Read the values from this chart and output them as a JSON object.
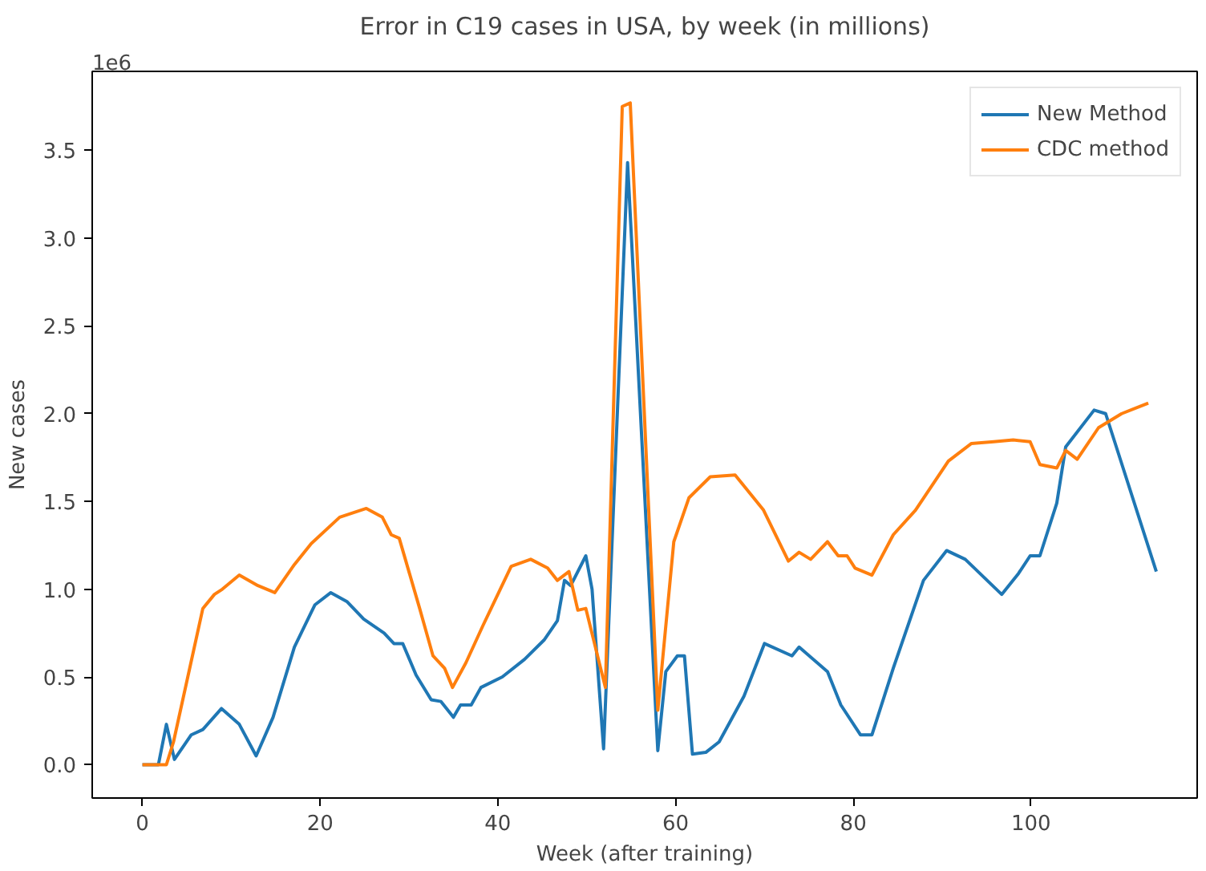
{
  "chart_data": {
    "type": "line",
    "title": "Error in C19 cases in USA, by week (in millions)",
    "xlabel": "Week (after training)",
    "ylabel": "New cases",
    "annotations": [
      "1e6"
    ],
    "xlim": [
      -5.65,
      118.7
    ],
    "xticks": [
      0,
      20,
      40,
      60,
      80,
      100
    ],
    "ylim": [
      -0.19,
      3.95
    ],
    "yticks": [
      {
        "value": 0,
        "label": "0.0"
      },
      {
        "value": 0.5,
        "label": "0.5"
      },
      {
        "value": 1,
        "label": "1.0"
      },
      {
        "value": 1.5,
        "label": "1.5"
      },
      {
        "value": 2,
        "label": "2.0"
      },
      {
        "value": 2.5,
        "label": "2.5"
      },
      {
        "value": 3,
        "label": "3.0"
      },
      {
        "value": 3.5,
        "label": "3.5"
      }
    ],
    "legend": "top right",
    "grid": false,
    "line_style": "solid",
    "series": [
      {
        "name": "New Method",
        "color": "#1f77b4",
        "x": [
          0,
          1.8,
          2.7,
          3.6,
          5.5,
          6.8,
          8.9,
          10.9,
          12.8,
          14.7,
          17.1,
          19.4,
          21.2,
          23.0,
          24.9,
          27.2,
          28.3,
          29.3,
          30.8,
          32.5,
          33.6,
          35.0,
          35.8,
          37.0,
          38.1,
          40.5,
          43.0,
          45.2,
          46.7,
          47.5,
          48.2,
          49.9,
          50.6,
          51.9,
          54.6,
          58.0,
          58.9,
          60.2,
          61.0,
          61.9,
          63.4,
          64.9,
          67.7,
          70.0,
          73.1,
          73.9,
          77.1,
          78.6,
          80.8,
          82.1,
          84.5,
          87.9,
          90.5,
          92.6,
          96.7,
          98.6,
          99.9,
          101.0,
          102.9,
          103.9,
          107.1,
          108.4,
          114.1
        ],
        "values": [
          0,
          0,
          0.23,
          0.03,
          0.17,
          0.2,
          0.32,
          0.23,
          0.05,
          0.27,
          0.67,
          0.91,
          0.98,
          0.93,
          0.83,
          0.75,
          0.69,
          0.69,
          0.51,
          0.37,
          0.36,
          0.27,
          0.34,
          0.34,
          0.44,
          0.5,
          0.6,
          0.71,
          0.82,
          1.05,
          1.02,
          1.19,
          1.0,
          0.09,
          3.43,
          0.08,
          0.53,
          0.62,
          0.62,
          0.06,
          0.07,
          0.13,
          0.39,
          0.69,
          0.62,
          0.67,
          0.53,
          0.34,
          0.17,
          0.17,
          0.55,
          1.05,
          1.22,
          1.17,
          0.97,
          1.09,
          1.19,
          1.19,
          1.49,
          1.81,
          2.02,
          2.0,
          1.1
        ]
      },
      {
        "name": "CDC method",
        "color": "#ff7f0e",
        "x": [
          0,
          2.7,
          3.5,
          6.8,
          8.1,
          9.0,
          10.9,
          13.0,
          14.9,
          17.1,
          19.0,
          22.2,
          25.2,
          27.0,
          28.0,
          28.9,
          31.2,
          32.7,
          34.0,
          34.9,
          36.4,
          38.3,
          41.5,
          43.7,
          45.6,
          46.7,
          48.0,
          49.0,
          49.9,
          52.1,
          54.0,
          54.9,
          58.0,
          59.8,
          61.5,
          63.9,
          66.7,
          69.9,
          72.7,
          73.9,
          75.2,
          77.1,
          78.3,
          79.3,
          80.2,
          82.1,
          84.5,
          87.0,
          90.7,
          93.3,
          95.8,
          98.0,
          99.9,
          101.0,
          102.9,
          103.9,
          105.2,
          107.6,
          110.2,
          113.2
        ],
        "values": [
          0,
          0,
          0.13,
          0.89,
          0.97,
          1.0,
          1.08,
          1.02,
          0.98,
          1.14,
          1.26,
          1.41,
          1.46,
          1.41,
          1.31,
          1.29,
          0.89,
          0.62,
          0.55,
          0.44,
          0.58,
          0.79,
          1.13,
          1.17,
          1.12,
          1.05,
          1.1,
          0.88,
          0.89,
          0.44,
          3.75,
          3.77,
          0.31,
          1.27,
          1.52,
          1.64,
          1.65,
          1.45,
          1.16,
          1.21,
          1.17,
          1.27,
          1.19,
          1.19,
          1.12,
          1.08,
          1.31,
          1.45,
          1.73,
          1.83,
          1.84,
          1.85,
          1.84,
          1.71,
          1.69,
          1.79,
          1.74,
          1.92,
          2.0,
          2.06
        ]
      }
    ]
  }
}
